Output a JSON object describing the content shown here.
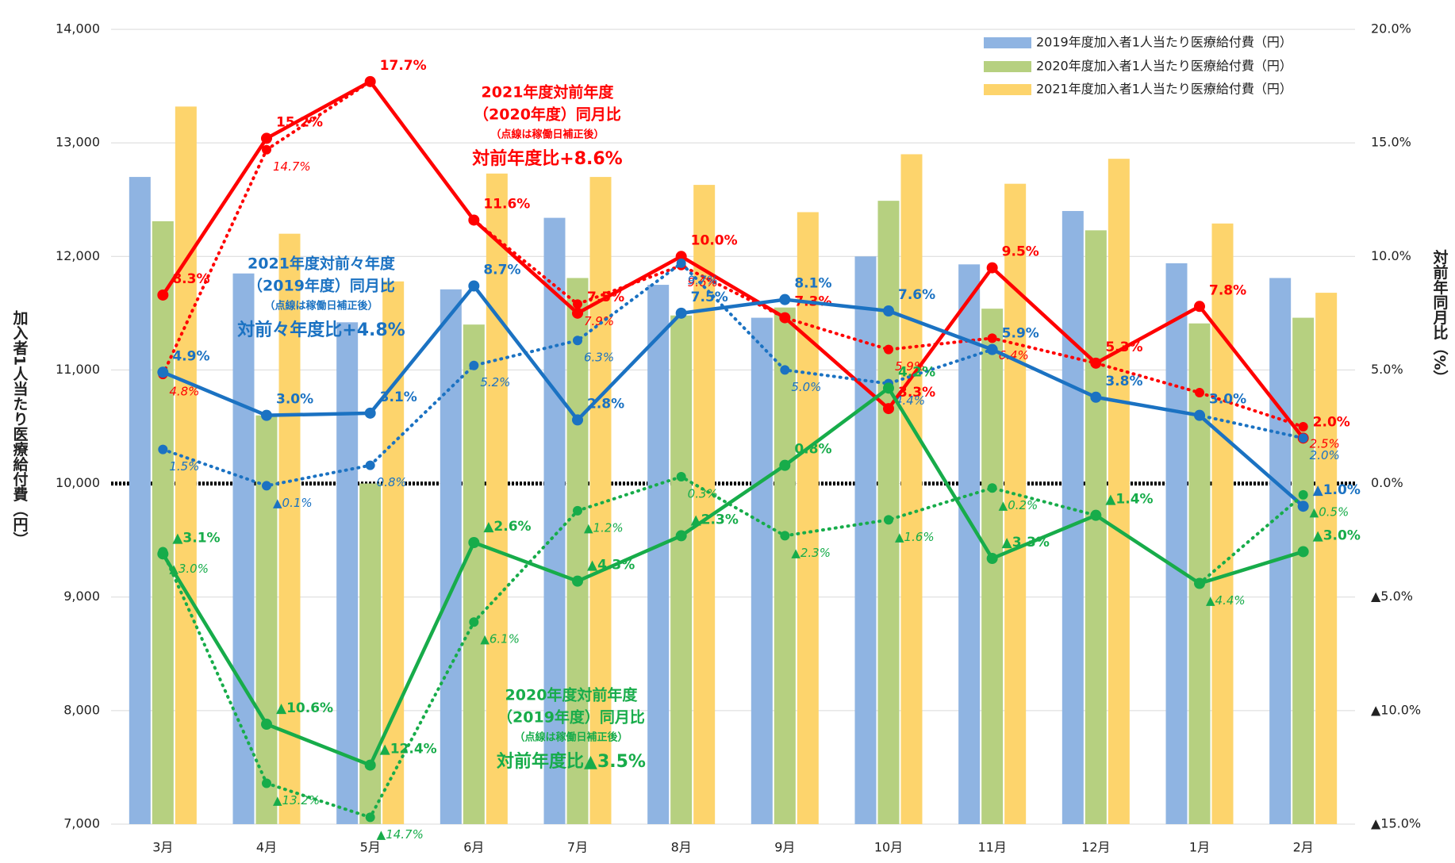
{
  "chart_data": {
    "type": "bar-line",
    "y_label": "加入者1人当たり医療給付費（円）",
    "y2_label": "対前年同月比（%）",
    "categories": [
      "3月",
      "4月",
      "5月",
      "6月",
      "7月",
      "8月",
      "9月",
      "10月",
      "11月",
      "12月",
      "1月",
      "2月"
    ],
    "ylim": [
      7000,
      14000
    ],
    "yticks": [
      {
        "value": 7000,
        "label": "7,000"
      },
      {
        "value": 8000,
        "label": "8,000"
      },
      {
        "value": 9000,
        "label": "9,000"
      },
      {
        "value": 10000,
        "label": "10,000"
      },
      {
        "value": 11000,
        "label": "11,000"
      },
      {
        "value": 12000,
        "label": "12,000"
      },
      {
        "value": 13000,
        "label": "13,000"
      },
      {
        "value": 14000,
        "label": "14,000"
      }
    ],
    "y2lim": [
      -15,
      20
    ],
    "y2ticks": [
      {
        "value": -15,
        "label": "▲15.0%"
      },
      {
        "value": -10,
        "label": "▲10.0%"
      },
      {
        "value": -5,
        "label": "▲5.0%"
      },
      {
        "value": 0,
        "label": "0.0%"
      },
      {
        "value": 5,
        "label": "5.0%"
      },
      {
        "value": 10,
        "label": "10.0%"
      },
      {
        "value": 15,
        "label": "15.0%"
      },
      {
        "value": 20,
        "label": "20.0%"
      }
    ],
    "grid": true,
    "legend": "top-right",
    "series": [
      {
        "name": "2019年度加入者1人当たり医療給付費（円）",
        "color": "#8fb4e2",
        "values": [
          12700,
          11850,
          11420,
          11710,
          12340,
          11750,
          11460,
          12000,
          11930,
          12400,
          11940,
          11810
        ]
      },
      {
        "name": "2020年度加入者1人当たり医療給付費（円）",
        "color": "#b6d080",
        "values": [
          12310,
          10600,
          10000,
          11400,
          11810,
          11480,
          11550,
          12490,
          11540,
          12230,
          11410,
          11460
        ]
      },
      {
        "name": "2021年度加入者1人当たり医療給付費（円）",
        "color": "#fdd46c",
        "values": [
          13320,
          12200,
          11780,
          12730,
          12700,
          12630,
          12390,
          12900,
          12640,
          12860,
          12290,
          11680
        ]
      }
    ],
    "line_series": [
      {
        "color": "#ff0000",
        "axis": "y2",
        "style": "solid",
        "values": [
          8.3,
          15.2,
          17.7,
          11.6,
          7.5,
          10.0,
          7.3,
          3.3,
          9.5,
          5.3,
          7.8,
          2.0
        ],
        "value_labels": [
          "8.3%",
          "15.2%",
          "17.7%",
          "11.6%",
          "7.5%",
          "10.0%",
          "7.3%",
          "3.3%",
          "9.5%",
          "5.3%",
          "7.8%",
          "2.0%"
        ]
      },
      {
        "color": "#ff0000",
        "axis": "y2",
        "style": "dotted",
        "values": [
          4.8,
          14.7,
          17.7,
          11.6,
          7.9,
          9.6,
          7.3,
          5.9,
          6.4,
          5.3,
          4.0,
          2.5
        ],
        "value_labels": [
          "4.8%",
          "14.7%",
          null,
          null,
          "7.9%",
          "9.6%",
          null,
          "5.9%",
          "6.4%",
          null,
          null,
          "2.5%"
        ]
      },
      {
        "color": "#1b72c2",
        "axis": "y2",
        "style": "solid",
        "values": [
          4.9,
          3.0,
          3.1,
          8.7,
          2.8,
          7.5,
          8.1,
          7.6,
          5.9,
          3.8,
          3.0,
          -1.0
        ],
        "value_labels": [
          "4.9%",
          "3.0%",
          "3.1%",
          "8.7%",
          "2.8%",
          "7.5%",
          "8.1%",
          "7.6%",
          "5.9%",
          "3.8%",
          "3.0%",
          "▲1.0%"
        ]
      },
      {
        "color": "#1b72c2",
        "axis": "y2",
        "style": "dotted",
        "values": [
          1.5,
          -0.1,
          0.8,
          5.2,
          6.3,
          9.7,
          5.0,
          4.4,
          5.9,
          3.8,
          3.0,
          2.0
        ],
        "value_labels": [
          "1.5%",
          "▲0.1%",
          "0.8%",
          "5.2%",
          "6.3%",
          "9.7%",
          "5.0%",
          "4.4%",
          null,
          null,
          null,
          "2.0%"
        ]
      },
      {
        "color": "#17ac4a",
        "axis": "y2",
        "style": "solid",
        "values": [
          -3.1,
          -10.6,
          -12.4,
          -2.6,
          -4.3,
          -2.3,
          0.8,
          4.2,
          -3.3,
          -1.4,
          -4.4,
          -3.0
        ],
        "value_labels": [
          "▲3.1%",
          "▲10.6%",
          "▲12.4%",
          "▲2.6%",
          "▲4.3%",
          "▲2.3%",
          "0.8%",
          "4.2%",
          "▲3.3%",
          "▲1.4%",
          null,
          "▲3.0%"
        ]
      },
      {
        "color": "#17ac4a",
        "axis": "y2",
        "style": "dotted",
        "values": [
          -3.0,
          -13.2,
          -14.7,
          -6.1,
          -1.2,
          0.3,
          -2.3,
          -1.6,
          -0.2,
          -1.4,
          -4.4,
          -0.5
        ],
        "value_labels": [
          "▲3.0%",
          "▲13.2%",
          "▲14.7%",
          "▲6.1%",
          "▲1.2%",
          "0.3%",
          "▲2.3%",
          "▲1.6%",
          "▲0.2%",
          null,
          "▲4.4%",
          "▲0.5%"
        ]
      }
    ],
    "annotations": [
      {
        "color": "#ff0000",
        "lines": [
          "2021年度対前年度",
          "（2020年度）同月比",
          "（点線は稼働日補正後）",
          "対前年度比+8.6%"
        ]
      },
      {
        "color": "#1b72c2",
        "lines": [
          "2021年度対前々年度",
          "（2019年度）同月比",
          "（点線は稼働日補正後）",
          "対前々年度比+4.8%"
        ]
      },
      {
        "color": "#17ac4a",
        "lines": [
          "2020年度対前年度",
          "（2019年度）同月比",
          "（点線は稼働日補正後）",
          "対前年度比▲3.5%"
        ]
      }
    ]
  }
}
